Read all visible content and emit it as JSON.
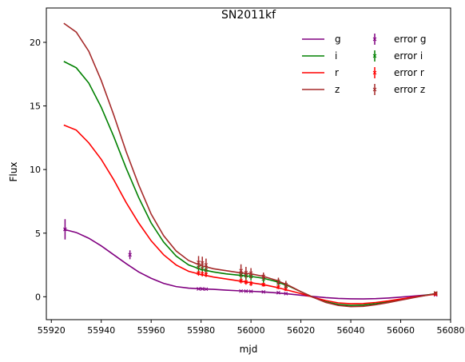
{
  "chart_data": {
    "type": "line",
    "title": "SN2011kf",
    "xlabel": "mjd",
    "ylabel": "Flux",
    "xlim": [
      55918,
      56080
    ],
    "ylim": [
      -1.8,
      22.7
    ],
    "xticks": [
      55920,
      55940,
      55960,
      55980,
      56000,
      56020,
      56040,
      56060,
      56080
    ],
    "yticks": [
      0,
      5,
      10,
      15,
      20
    ],
    "legend_position": "upper-right",
    "legend_columns": 2,
    "colors": {
      "g": "#800080",
      "i": "#008000",
      "r": "#ff0000",
      "z": "#a52a2a"
    },
    "curve_x": [
      55925,
      55930,
      55935,
      55940,
      55945,
      55950,
      55955,
      55960,
      55965,
      55970,
      55975,
      55980,
      55985,
      55990,
      55995,
      56000,
      56005,
      56010,
      56015,
      56020,
      56025,
      56030,
      56035,
      56040,
      56045,
      56050,
      56055,
      56060,
      56065,
      56070,
      56074
    ],
    "series": [
      {
        "name": "g",
        "curve_y": [
          5.3,
          5.05,
          4.6,
          4.0,
          3.3,
          2.6,
          1.95,
          1.45,
          1.05,
          0.8,
          0.68,
          0.62,
          0.58,
          0.52,
          0.47,
          0.43,
          0.38,
          0.31,
          0.22,
          0.12,
          0.02,
          -0.07,
          -0.13,
          -0.16,
          -0.17,
          -0.15,
          -0.1,
          -0.03,
          0.05,
          0.14,
          0.2
        ],
        "error_label": "error g",
        "points": [
          {
            "x": 55925.5,
            "y": 5.3,
            "err": 0.8
          },
          {
            "x": 55951.5,
            "y": 3.3,
            "err": 0.35
          },
          {
            "x": 55979,
            "y": 0.62,
            "err": 0.05
          },
          {
            "x": 55980.5,
            "y": 0.62,
            "err": 0.05
          },
          {
            "x": 55982,
            "y": 0.6,
            "err": 0.05
          },
          {
            "x": 55996,
            "y": 0.45,
            "err": 0.05
          },
          {
            "x": 55998,
            "y": 0.44,
            "err": 0.05
          },
          {
            "x": 56000,
            "y": 0.42,
            "err": 0.05
          },
          {
            "x": 56005,
            "y": 0.38,
            "err": 0.05
          },
          {
            "x": 56011,
            "y": 0.32,
            "err": 0.05
          },
          {
            "x": 56014,
            "y": 0.25,
            "err": 0.05
          },
          {
            "x": 56074,
            "y": 0.15,
            "err": 0.05
          }
        ]
      },
      {
        "name": "i",
        "curve_y": [
          18.5,
          18.0,
          16.8,
          14.9,
          12.6,
          10.1,
          7.8,
          5.8,
          4.3,
          3.2,
          2.5,
          2.15,
          1.95,
          1.8,
          1.7,
          1.6,
          1.45,
          1.2,
          0.85,
          0.4,
          -0.05,
          -0.4,
          -0.6,
          -0.68,
          -0.65,
          -0.55,
          -0.4,
          -0.22,
          -0.05,
          0.12,
          0.25
        ],
        "error_label": "error i",
        "points": [
          {
            "x": 55979,
            "y": 2.3,
            "err": 0.5
          },
          {
            "x": 55980.5,
            "y": 2.2,
            "err": 0.4
          },
          {
            "x": 55982,
            "y": 2.1,
            "err": 0.5
          },
          {
            "x": 55996,
            "y": 1.7,
            "err": 0.4
          },
          {
            "x": 55998,
            "y": 1.65,
            "err": 0.3
          },
          {
            "x": 56000,
            "y": 1.6,
            "err": 0.3
          },
          {
            "x": 56005,
            "y": 1.4,
            "err": 0.3
          },
          {
            "x": 56011,
            "y": 1.1,
            "err": 0.3
          },
          {
            "x": 56014,
            "y": 0.85,
            "err": 0.3
          },
          {
            "x": 56074,
            "y": 0.25,
            "err": 0.1
          }
        ]
      },
      {
        "name": "r",
        "curve_y": [
          13.5,
          13.1,
          12.1,
          10.8,
          9.2,
          7.4,
          5.8,
          4.4,
          3.3,
          2.5,
          2.0,
          1.75,
          1.55,
          1.4,
          1.25,
          1.1,
          0.95,
          0.75,
          0.5,
          0.25,
          -0.05,
          -0.3,
          -0.48,
          -0.55,
          -0.53,
          -0.45,
          -0.33,
          -0.18,
          -0.03,
          0.1,
          0.2
        ],
        "error_label": "error r",
        "points": [
          {
            "x": 55979,
            "y": 1.85,
            "err": 0.2
          },
          {
            "x": 55980.5,
            "y": 1.8,
            "err": 0.2
          },
          {
            "x": 55982,
            "y": 1.75,
            "err": 0.2
          },
          {
            "x": 55996,
            "y": 1.25,
            "err": 0.2
          },
          {
            "x": 55998,
            "y": 1.15,
            "err": 0.2
          },
          {
            "x": 56000,
            "y": 1.05,
            "err": 0.2
          },
          {
            "x": 56005,
            "y": 0.95,
            "err": 0.15
          },
          {
            "x": 56011,
            "y": 0.75,
            "err": 0.15
          },
          {
            "x": 56014,
            "y": 0.6,
            "err": 0.15
          },
          {
            "x": 56074,
            "y": 0.2,
            "err": 0.1
          }
        ]
      },
      {
        "name": "z",
        "curve_y": [
          21.5,
          20.8,
          19.3,
          17.0,
          14.3,
          11.4,
          8.8,
          6.5,
          4.8,
          3.6,
          2.85,
          2.45,
          2.2,
          2.05,
          1.9,
          1.8,
          1.6,
          1.3,
          0.9,
          0.4,
          -0.05,
          -0.45,
          -0.68,
          -0.78,
          -0.75,
          -0.63,
          -0.46,
          -0.27,
          -0.08,
          0.1,
          0.25
        ],
        "error_label": "error z",
        "points": [
          {
            "x": 55979,
            "y": 2.7,
            "err": 0.5
          },
          {
            "x": 55980.5,
            "y": 2.65,
            "err": 0.5
          },
          {
            "x": 55982,
            "y": 2.5,
            "err": 0.5
          },
          {
            "x": 55996,
            "y": 2.05,
            "err": 0.5
          },
          {
            "x": 55998,
            "y": 1.9,
            "err": 0.45
          },
          {
            "x": 56000,
            "y": 1.85,
            "err": 0.4
          },
          {
            "x": 56005,
            "y": 1.6,
            "err": 0.3
          },
          {
            "x": 56011,
            "y": 1.2,
            "err": 0.3
          },
          {
            "x": 56014,
            "y": 0.95,
            "err": 0.3
          },
          {
            "x": 56074,
            "y": 0.3,
            "err": 0.1
          }
        ]
      }
    ]
  }
}
